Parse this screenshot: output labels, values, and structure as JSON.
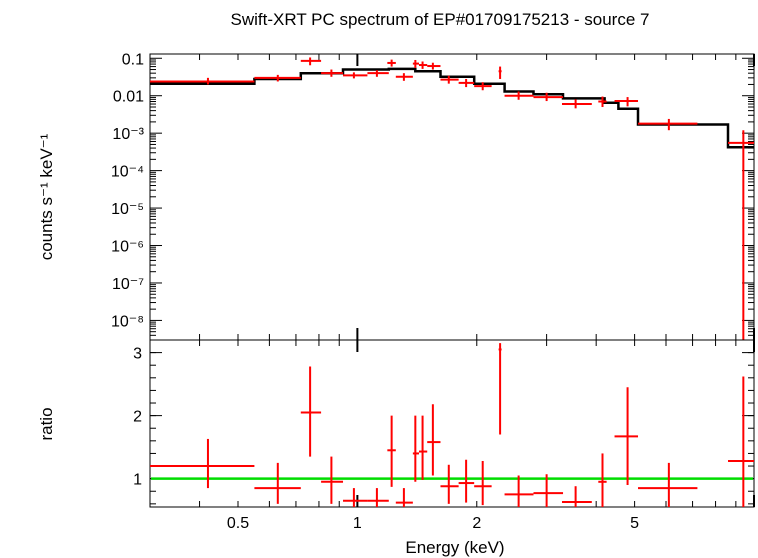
{
  "chart_data": [
    {
      "panel": "spectrum",
      "type": "scatter",
      "title": "Swift-XRT PC spectrum of EP#01709175213 - source 7",
      "xlabel": "Energy (keV)",
      "ylabel": "counts s⁻¹ keV⁻¹",
      "x_scale": "log",
      "y_scale": "log",
      "xlim": [
        0.3,
        10
      ],
      "ylim": [
        3e-09,
        0.13
      ],
      "y_tick_labels": [
        "0.1",
        "0.01",
        "10⁻³",
        "10⁻⁴",
        "10⁻⁵",
        "10⁻⁶",
        "10⁻⁷",
        "10⁻⁸"
      ],
      "y_tick_values": [
        0.1,
        0.01,
        0.001,
        0.0001,
        1e-05,
        1e-06,
        1e-07,
        1e-08
      ],
      "series": [
        {
          "kind": "data",
          "color": "#ff0000",
          "points": [
            {
              "x": 0.42,
              "xlo": 0.3,
              "xhi": 0.55,
              "y": 0.024,
              "ylo": 0.02,
              "yhi": 0.03
            },
            {
              "x": 0.63,
              "xlo": 0.55,
              "xhi": 0.72,
              "y": 0.03,
              "ylo": 0.024,
              "yhi": 0.036
            },
            {
              "x": 0.76,
              "xlo": 0.72,
              "xhi": 0.81,
              "y": 0.085,
              "ylo": 0.065,
              "yhi": 0.105
            },
            {
              "x": 0.86,
              "xlo": 0.81,
              "xhi": 0.92,
              "y": 0.04,
              "ylo": 0.032,
              "yhi": 0.05
            },
            {
              "x": 0.98,
              "xlo": 0.92,
              "xhi": 1.06,
              "y": 0.035,
              "ylo": 0.029,
              "yhi": 0.042
            },
            {
              "x": 1.12,
              "xlo": 1.06,
              "xhi": 1.2,
              "y": 0.04,
              "ylo": 0.032,
              "yhi": 0.048
            },
            {
              "x": 1.22,
              "xlo": 1.19,
              "xhi": 1.25,
              "y": 0.075,
              "ylo": 0.06,
              "yhi": 0.092
            },
            {
              "x": 1.31,
              "xlo": 1.25,
              "xhi": 1.38,
              "y": 0.032,
              "ylo": 0.025,
              "yhi": 0.04
            },
            {
              "x": 1.4,
              "xlo": 1.38,
              "xhi": 1.43,
              "y": 0.072,
              "ylo": 0.055,
              "yhi": 0.09
            },
            {
              "x": 1.46,
              "xlo": 1.43,
              "xhi": 1.5,
              "y": 0.066,
              "ylo": 0.052,
              "yhi": 0.082
            },
            {
              "x": 1.55,
              "xlo": 1.5,
              "xhi": 1.62,
              "y": 0.062,
              "ylo": 0.05,
              "yhi": 0.076
            },
            {
              "x": 1.7,
              "xlo": 1.62,
              "xhi": 1.8,
              "y": 0.027,
              "ylo": 0.021,
              "yhi": 0.034
            },
            {
              "x": 1.88,
              "xlo": 1.8,
              "xhi": 1.97,
              "y": 0.022,
              "ylo": 0.017,
              "yhi": 0.028
            },
            {
              "x": 2.07,
              "xlo": 1.97,
              "xhi": 2.18,
              "y": 0.018,
              "ylo": 0.014,
              "yhi": 0.023
            },
            {
              "x": 2.29,
              "xlo": 2.27,
              "xhi": 2.31,
              "y": 0.045,
              "ylo": 0.028,
              "yhi": 0.06
            },
            {
              "x": 2.55,
              "xlo": 2.35,
              "xhi": 2.78,
              "y": 0.01,
              "ylo": 0.0078,
              "yhi": 0.013
            },
            {
              "x": 3.0,
              "xlo": 2.78,
              "xhi": 3.3,
              "y": 0.0092,
              "ylo": 0.0072,
              "yhi": 0.012
            },
            {
              "x": 3.55,
              "xlo": 3.28,
              "xhi": 3.9,
              "y": 0.006,
              "ylo": 0.0046,
              "yhi": 0.008
            },
            {
              "x": 4.15,
              "xlo": 4.05,
              "xhi": 4.25,
              "y": 0.007,
              "ylo": 0.005,
              "yhi": 0.0095
            },
            {
              "x": 4.8,
              "xlo": 4.45,
              "xhi": 5.1,
              "y": 0.0072,
              "ylo": 0.0052,
              "yhi": 0.0092
            },
            {
              "x": 6.1,
              "xlo": 5.1,
              "xhi": 7.2,
              "y": 0.0018,
              "ylo": 0.0012,
              "yhi": 0.0024
            },
            {
              "x": 9.4,
              "xlo": 8.6,
              "xhi": 10.0,
              "y": 0.00055,
              "ylo": 3e-09,
              "yhi": 0.0012
            }
          ]
        },
        {
          "kind": "model",
          "color": "#000000",
          "steps": [
            {
              "e": 0.3,
              "y": 0.021
            },
            {
              "e": 0.55,
              "y": 0.028
            },
            {
              "e": 0.72,
              "y": 0.04
            },
            {
              "e": 0.92,
              "y": 0.05
            },
            {
              "e": 1.2,
              "y": 0.052
            },
            {
              "e": 1.4,
              "y": 0.045
            },
            {
              "e": 1.62,
              "y": 0.032
            },
            {
              "e": 1.97,
              "y": 0.021
            },
            {
              "e": 2.35,
              "y": 0.013
            },
            {
              "e": 2.78,
              "y": 0.011
            },
            {
              "e": 3.3,
              "y": 0.0085
            },
            {
              "e": 4.2,
              "y": 0.0065
            },
            {
              "e": 4.55,
              "y": 0.0045
            },
            {
              "e": 5.1,
              "y": 0.0017
            },
            {
              "e": 8.6,
              "y": 0.00042
            },
            {
              "e": 10.0,
              "y": 0.00042
            }
          ]
        }
      ]
    },
    {
      "panel": "ratio",
      "type": "scatter",
      "xlabel": "Energy (keV)",
      "ylabel": "ratio",
      "x_scale": "log",
      "y_scale": "linear",
      "xlim": [
        0.3,
        10
      ],
      "ylim": [
        0.55,
        3.2
      ],
      "x_tick_labels": [
        "0.5",
        "1",
        "2",
        "5"
      ],
      "x_tick_values": [
        0.5,
        1,
        2,
        5
      ],
      "y_tick_labels": [
        "1",
        "2",
        "3"
      ],
      "y_tick_values": [
        1,
        2,
        3
      ],
      "reference_line": {
        "y": 1,
        "color": "#00dd00"
      },
      "series": [
        {
          "kind": "ratio",
          "color": "#ff0000",
          "points": [
            {
              "x": 0.42,
              "xlo": 0.3,
              "xhi": 0.55,
              "y": 1.2,
              "ylo": 0.85,
              "yhi": 1.63
            },
            {
              "x": 0.63,
              "xlo": 0.55,
              "xhi": 0.72,
              "y": 0.85,
              "ylo": 0.6,
              "yhi": 1.25
            },
            {
              "x": 0.76,
              "xlo": 0.72,
              "xhi": 0.81,
              "y": 2.05,
              "ylo": 1.35,
              "yhi": 2.78
            },
            {
              "x": 0.86,
              "xlo": 0.81,
              "xhi": 0.92,
              "y": 0.95,
              "ylo": 0.6,
              "yhi": 1.35
            },
            {
              "x": 0.98,
              "xlo": 0.92,
              "xhi": 1.06,
              "y": 0.65,
              "ylo": 0.55,
              "yhi": 0.85
            },
            {
              "x": 1.12,
              "xlo": 1.06,
              "xhi": 1.2,
              "y": 0.65,
              "ylo": 0.55,
              "yhi": 0.85
            },
            {
              "x": 1.22,
              "xlo": 1.19,
              "xhi": 1.25,
              "y": 1.45,
              "ylo": 0.87,
              "yhi": 2.0
            },
            {
              "x": 1.31,
              "xlo": 1.25,
              "xhi": 1.38,
              "y": 0.62,
              "ylo": 0.55,
              "yhi": 0.85
            },
            {
              "x": 1.4,
              "xlo": 1.38,
              "xhi": 1.43,
              "y": 1.4,
              "ylo": 0.95,
              "yhi": 2.0
            },
            {
              "x": 1.46,
              "xlo": 1.43,
              "xhi": 1.5,
              "y": 1.43,
              "ylo": 0.98,
              "yhi": 2.0
            },
            {
              "x": 1.55,
              "xlo": 1.5,
              "xhi": 1.62,
              "y": 1.58,
              "ylo": 1.05,
              "yhi": 2.18
            },
            {
              "x": 1.7,
              "xlo": 1.62,
              "xhi": 1.8,
              "y": 0.88,
              "ylo": 0.6,
              "yhi": 1.22
            },
            {
              "x": 1.88,
              "xlo": 1.8,
              "xhi": 1.97,
              "y": 0.93,
              "ylo": 0.62,
              "yhi": 1.3
            },
            {
              "x": 2.07,
              "xlo": 1.97,
              "xhi": 2.18,
              "y": 0.88,
              "ylo": 0.58,
              "yhi": 1.28
            },
            {
              "x": 2.29,
              "xlo": 2.27,
              "xhi": 2.31,
              "y": 3.05,
              "ylo": 1.7,
              "yhi": 3.15
            },
            {
              "x": 2.55,
              "xlo": 2.35,
              "xhi": 2.78,
              "y": 0.75,
              "ylo": 0.55,
              "yhi": 1.05
            },
            {
              "x": 3.0,
              "xlo": 2.78,
              "xhi": 3.3,
              "y": 0.77,
              "ylo": 0.55,
              "yhi": 1.07
            },
            {
              "x": 3.55,
              "xlo": 3.28,
              "xhi": 3.9,
              "y": 0.63,
              "ylo": 0.55,
              "yhi": 0.88
            },
            {
              "x": 4.15,
              "xlo": 4.05,
              "xhi": 4.25,
              "y": 0.95,
              "ylo": 0.55,
              "yhi": 1.4
            },
            {
              "x": 4.8,
              "xlo": 4.45,
              "xhi": 5.1,
              "y": 1.67,
              "ylo": 0.9,
              "yhi": 2.45
            },
            {
              "x": 6.1,
              "xlo": 5.1,
              "xhi": 7.2,
              "y": 0.85,
              "ylo": 0.55,
              "yhi": 1.25
            },
            {
              "x": 9.4,
              "xlo": 8.6,
              "xhi": 10.0,
              "y": 1.28,
              "ylo": 0.55,
              "yhi": 2.62
            }
          ]
        }
      ]
    }
  ]
}
